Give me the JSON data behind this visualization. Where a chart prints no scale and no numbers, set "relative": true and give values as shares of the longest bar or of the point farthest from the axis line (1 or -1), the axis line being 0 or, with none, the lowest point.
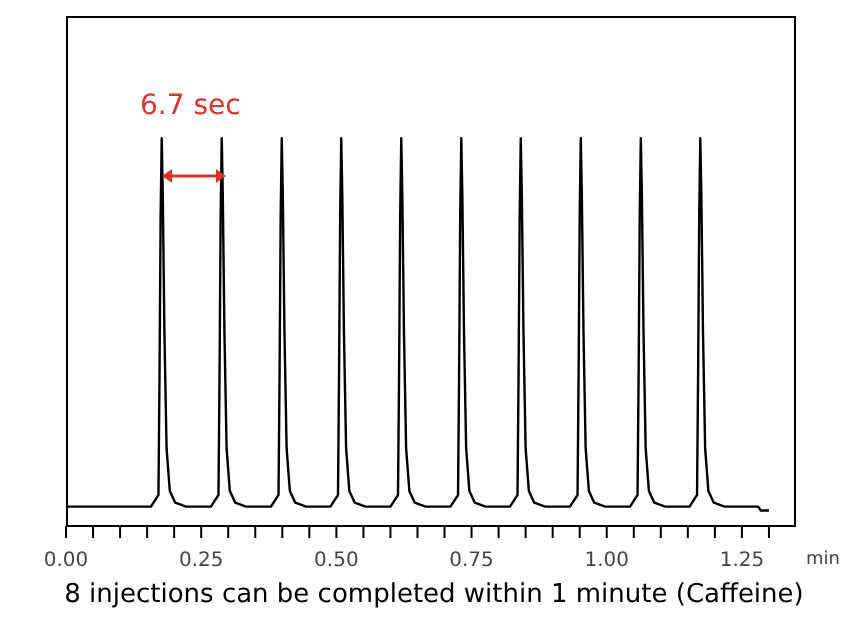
{
  "chart_data": {
    "type": "line",
    "relative": true,
    "xlabel": "min",
    "marker": "none",
    "line_style": "solid",
    "x": [
      0,
      0.157,
      0.171,
      0.173,
      0.175,
      0.177,
      0.179,
      0.182,
      0.186,
      0.192,
      0.202,
      0.222,
      0.268,
      0.282,
      0.284,
      0.286,
      0.288,
      0.29,
      0.293,
      0.297,
      0.303,
      0.313,
      0.333,
      0.379,
      0.393,
      0.395,
      0.397,
      0.399,
      0.401,
      0.404,
      0.408,
      0.414,
      0.424,
      0.444,
      0.489,
      0.503,
      0.505,
      0.507,
      0.509,
      0.511,
      0.514,
      0.518,
      0.524,
      0.534,
      0.554,
      0.6,
      0.614,
      0.616,
      0.618,
      0.62,
      0.622,
      0.625,
      0.629,
      0.635,
      0.645,
      0.665,
      0.711,
      0.725,
      0.727,
      0.729,
      0.731,
      0.733,
      0.736,
      0.74,
      0.746,
      0.756,
      0.776,
      0.821,
      0.835,
      0.837,
      0.839,
      0.841,
      0.843,
      0.846,
      0.85,
      0.856,
      0.866,
      0.886,
      0.932,
      0.946,
      0.948,
      0.95,
      0.952,
      0.954,
      0.957,
      0.961,
      0.967,
      0.977,
      0.997,
      1.043,
      1.057,
      1.059,
      1.061,
      1.063,
      1.065,
      1.068,
      1.072,
      1.078,
      1.088,
      1.108,
      1.153,
      1.167,
      1.169,
      1.171,
      1.173,
      1.175,
      1.178,
      1.182,
      1.188,
      1.198,
      1.218,
      1.28,
      1.285,
      1.3
    ],
    "series": [
      {
        "color": "#000000",
        "values": [
          0.05,
          0.05,
          0.08,
          0.4,
          0.8,
          1,
          0.85,
          0.5,
          0.2,
          0.09,
          0.06,
          0.05,
          0.05,
          0.08,
          0.4,
          0.8,
          1,
          0.85,
          0.5,
          0.2,
          0.09,
          0.06,
          0.05,
          0.05,
          0.08,
          0.4,
          0.8,
          1,
          0.85,
          0.5,
          0.2,
          0.09,
          0.06,
          0.05,
          0.05,
          0.08,
          0.4,
          0.8,
          1,
          0.85,
          0.5,
          0.2,
          0.09,
          0.06,
          0.05,
          0.05,
          0.08,
          0.4,
          0.8,
          1,
          0.85,
          0.5,
          0.2,
          0.09,
          0.06,
          0.05,
          0.05,
          0.08,
          0.4,
          0.8,
          1,
          0.85,
          0.5,
          0.2,
          0.09,
          0.06,
          0.05,
          0.05,
          0.08,
          0.4,
          0.8,
          1,
          0.85,
          0.5,
          0.2,
          0.09,
          0.06,
          0.05,
          0.05,
          0.08,
          0.4,
          0.8,
          1,
          0.85,
          0.5,
          0.2,
          0.09,
          0.06,
          0.05,
          0.05,
          0.08,
          0.4,
          0.8,
          1,
          0.85,
          0.5,
          0.2,
          0.09,
          0.06,
          0.05,
          0.05,
          0.08,
          0.4,
          0.8,
          1,
          0.85,
          0.5,
          0.2,
          0.09,
          0.06,
          0.05,
          0.05,
          0.04,
          0.04
        ]
      }
    ],
    "xlim": [
      0,
      1.35
    ],
    "xticks": [
      {
        "value": 0,
        "label": "0.00"
      },
      {
        "value": 0.05,
        "label": null
      },
      {
        "value": 0.1,
        "label": null
      },
      {
        "value": 0.15,
        "label": null
      },
      {
        "value": 0.2,
        "label": null
      },
      {
        "value": 0.25,
        "label": "0.25"
      },
      {
        "value": 0.3,
        "label": null
      },
      {
        "value": 0.35,
        "label": null
      },
      {
        "value": 0.4,
        "label": null
      },
      {
        "value": 0.45,
        "label": null
      },
      {
        "value": 0.5,
        "label": "0.50"
      },
      {
        "value": 0.55,
        "label": null
      },
      {
        "value": 0.6,
        "label": null
      },
      {
        "value": 0.65,
        "label": null
      },
      {
        "value": 0.7,
        "label": null
      },
      {
        "value": 0.75,
        "label": "0.75"
      },
      {
        "value": 0.8,
        "label": null
      },
      {
        "value": 0.85,
        "label": null
      },
      {
        "value": 0.9,
        "label": null
      },
      {
        "value": 0.95,
        "label": null
      },
      {
        "value": 1,
        "label": "1.00"
      },
      {
        "value": 1.05,
        "label": null
      },
      {
        "value": 1.1,
        "label": null
      },
      {
        "value": 1.15,
        "label": null
      },
      {
        "value": 1.2,
        "label": null
      },
      {
        "value": 1.25,
        "label": "1.25"
      },
      {
        "value": 1.3,
        "label": null
      }
    ],
    "annotations": [
      "6.7 sec",
      "8 injections can be completed within 1 minute (Caffeine)"
    ]
  }
}
